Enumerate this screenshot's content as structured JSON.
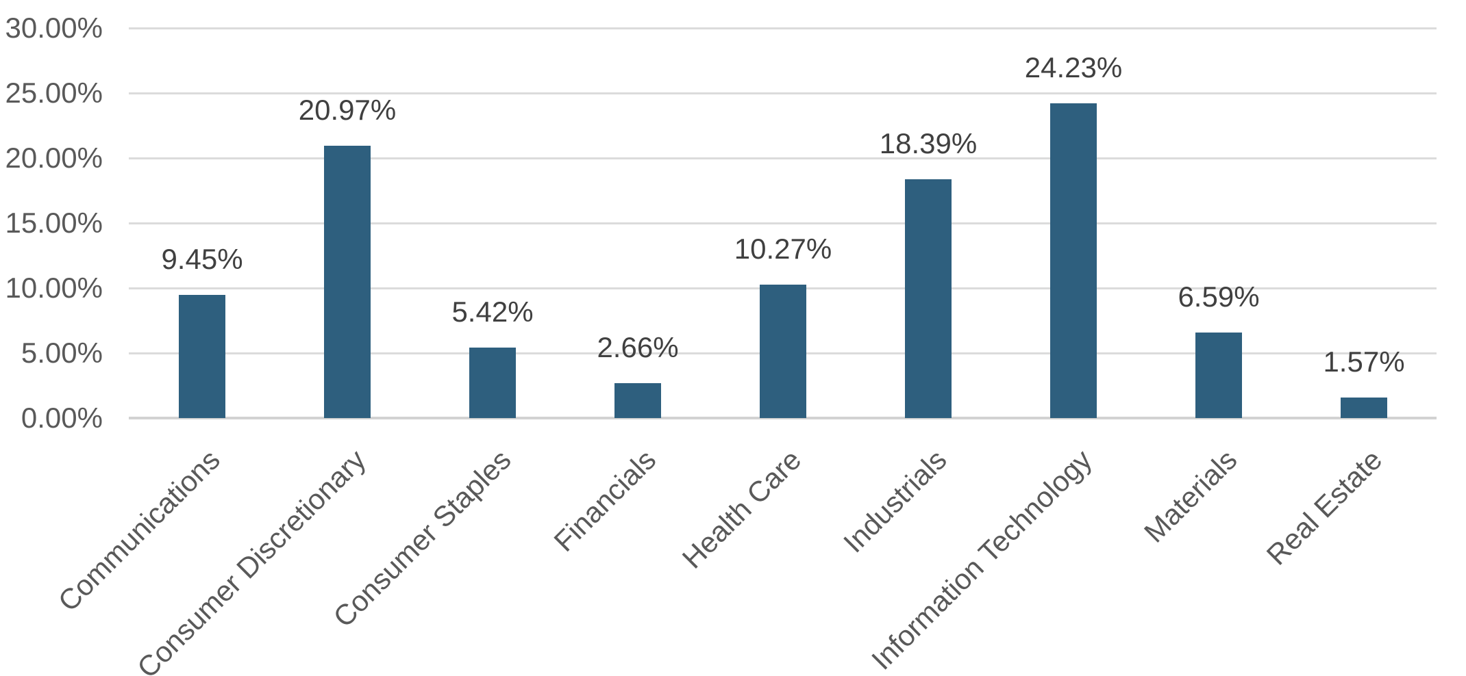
{
  "chart_data": {
    "type": "bar",
    "title": "",
    "xlabel": "",
    "ylabel": "",
    "categories": [
      "Communications",
      "Consumer Discretionary",
      "Consumer Staples",
      "Financials",
      "Health Care",
      "Industrials",
      "Information Technology",
      "Materials",
      "Real Estate"
    ],
    "values": [
      9.45,
      20.97,
      5.42,
      2.66,
      10.27,
      18.39,
      24.23,
      6.59,
      1.57
    ],
    "value_labels": [
      "9.45%",
      "20.97%",
      "5.42%",
      "2.66%",
      "10.27%",
      "18.39%",
      "24.23%",
      "6.59%",
      "1.57%"
    ],
    "ylim": [
      0,
      30
    ],
    "y_tick_values": [
      30,
      25,
      20,
      15,
      10,
      5,
      0
    ],
    "y_tick_labels": [
      "30.00%",
      "25.00%",
      "20.00%",
      "15.00%",
      "10.00%",
      "5.00%",
      "0.00%"
    ],
    "x_label_rotation_deg": -45,
    "grid": "horizontal",
    "legend_position": "none",
    "colors": {
      "bar_fill": "#2E5F7E",
      "axis_tick_label": "#595959",
      "category_label": "#595959",
      "value_label": "#404040",
      "gridline": "#DBDBDB",
      "axis_line": "#D2D2D2",
      "background": "#FFFFFF"
    }
  }
}
